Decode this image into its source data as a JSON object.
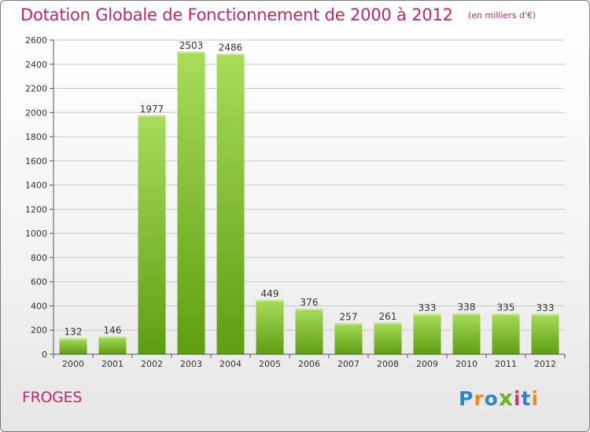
{
  "header": {
    "title": "Dotation Globale de Fonctionnement de 2000 à 2012",
    "subtitle": "(en milliers d'€)"
  },
  "footer": {
    "commune": "FROGES"
  },
  "logo": {
    "text": "Proxiti",
    "letters": [
      "P",
      "r",
      "o",
      "x",
      "i",
      "t",
      "i"
    ],
    "colors": [
      "#2a86d0",
      "#f08a16",
      "#2a86d0",
      "#6cb51f",
      "#d4327a",
      "#2a86d0",
      "#f08a16"
    ]
  },
  "colors": {
    "title": "#c0266f",
    "bar_top": "#a8dc5a",
    "bar_bottom": "#5e9e12",
    "grid": "#c8c8c8",
    "axis": "#555555"
  },
  "chart_data": {
    "type": "bar",
    "categories": [
      "2000",
      "2001",
      "2002",
      "2003",
      "2004",
      "2005",
      "2006",
      "2007",
      "2008",
      "2009",
      "2010",
      "2011",
      "2012"
    ],
    "values": [
      132,
      146,
      1977,
      2503,
      2486,
      449,
      376,
      257,
      261,
      333,
      338,
      335,
      333
    ],
    "ylim": [
      0,
      2600
    ],
    "yticks": [
      0,
      200,
      400,
      600,
      800,
      1000,
      1200,
      1400,
      1600,
      1800,
      2000,
      2200,
      2400,
      2600
    ],
    "grid": true,
    "legend": "none"
  }
}
